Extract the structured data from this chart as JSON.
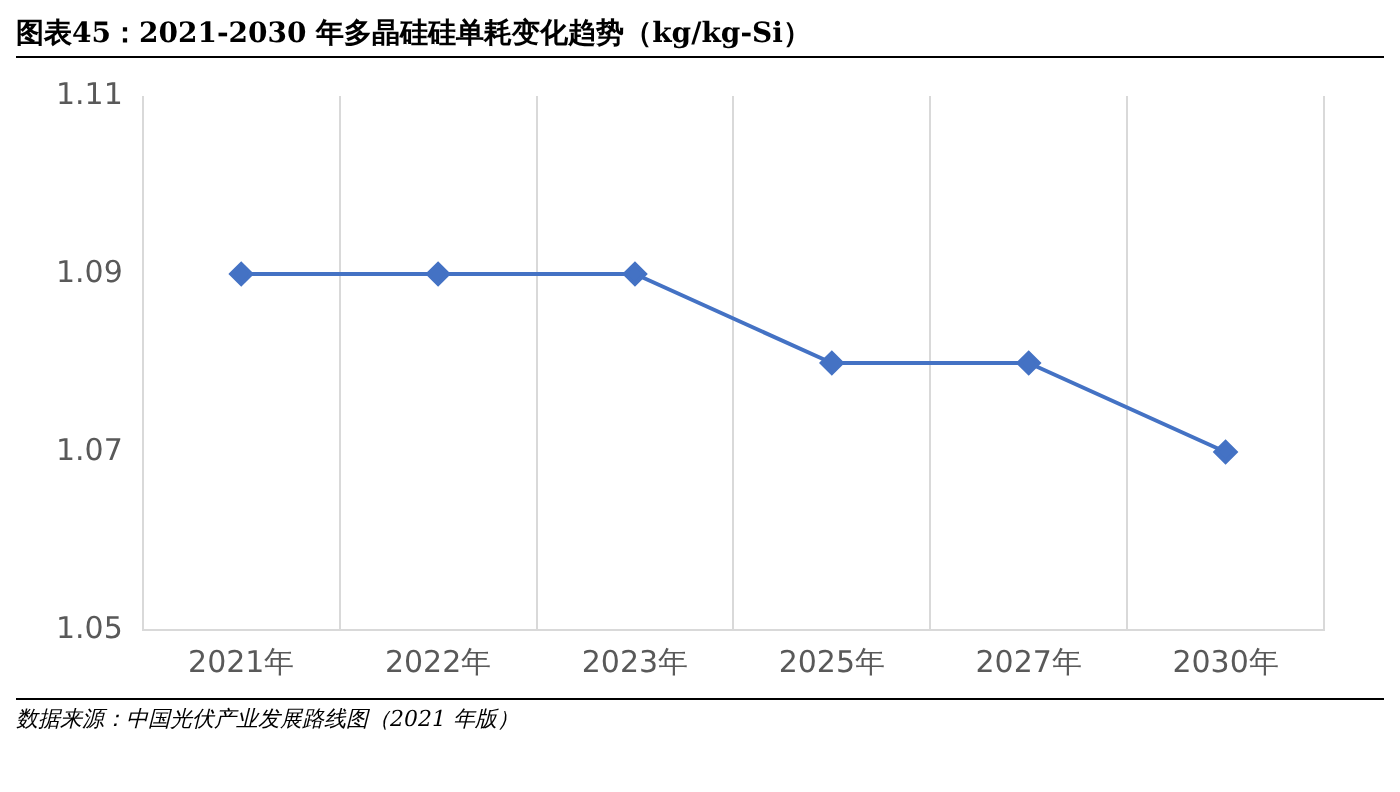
{
  "chart_data": {
    "type": "line",
    "title": "图表45：2021-2030 年多晶硅硅单耗变化趋势（kg/kg-Si）",
    "categories": [
      "2021年",
      "2022年",
      "2023年",
      "2025年",
      "2027年",
      "2030年"
    ],
    "series": [
      {
        "color": "#4472c4",
        "values": [
          1.09,
          1.09,
          1.09,
          1.08,
          1.08,
          1.07
        ]
      }
    ],
    "ylim": [
      1.05,
      1.11
    ],
    "yticks": [
      1.05,
      1.07,
      1.09,
      1.11
    ],
    "grid": "x",
    "legend": false,
    "marker": "diamond",
    "line_style": "solid",
    "annotations": [
      "数据来源：中国光伏产业发展路线图（2021 年版）"
    ]
  }
}
